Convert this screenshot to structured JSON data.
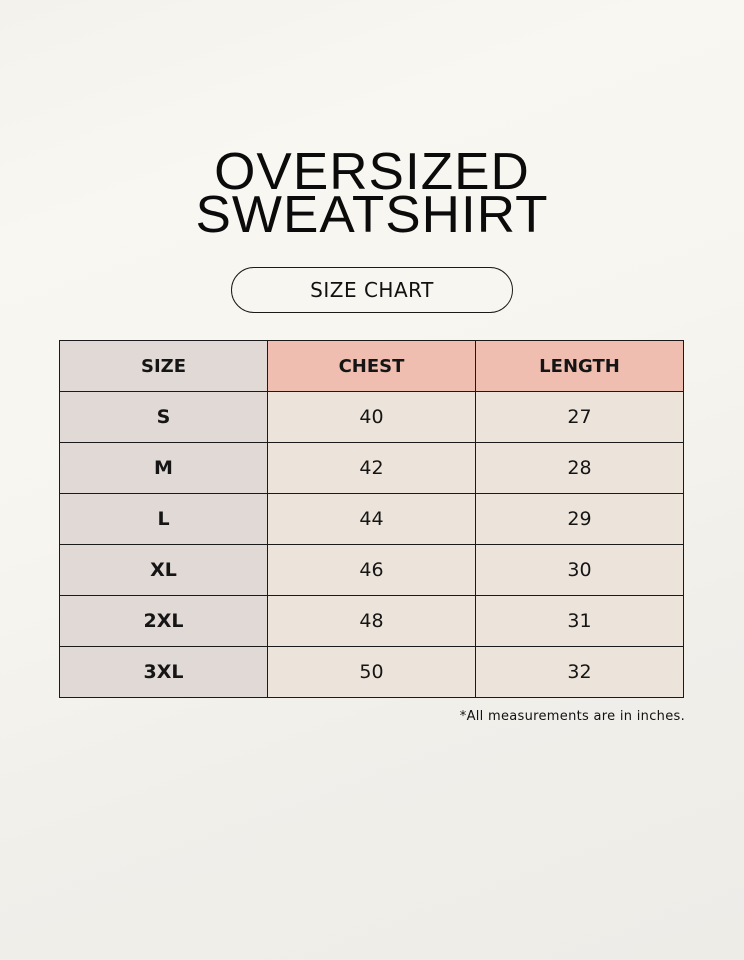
{
  "header": {
    "title": [
      "OVERSIZED",
      "SWEATSHIRT"
    ],
    "badge": "SIZE CHART"
  },
  "table": {
    "columns": [
      "SIZE",
      "CHEST",
      "LENGTH"
    ],
    "rows": [
      [
        "S",
        40,
        27
      ],
      [
        "M",
        42,
        28
      ],
      [
        "L",
        44,
        29
      ],
      [
        "XL",
        46,
        30
      ],
      [
        "2XL",
        48,
        31
      ],
      [
        "3XL",
        50,
        32
      ]
    ]
  },
  "footnote": "*All measurements are in inches."
}
